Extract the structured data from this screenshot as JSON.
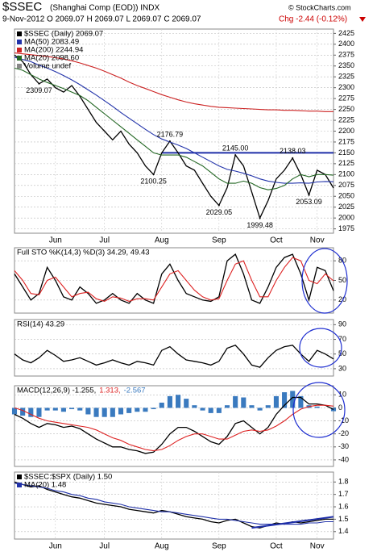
{
  "chart_data": [
    {
      "type": "line",
      "title": "$SSEC",
      "subtitle": "(Shanghai Comp (EOD)) INDX",
      "credit": "© StockCharts.com",
      "info": "9-Nov-2012  O 2069.07 H 2069.07 L 2069.07 C 2069.07",
      "change": "Chg -2.44 (-0.12%)",
      "xlim": [
        0,
        39
      ],
      "xticks": [
        {
          "value": 5,
          "label": "Jun"
        },
        {
          "value": 11,
          "label": "Jul"
        },
        {
          "value": 18,
          "label": "Aug"
        },
        {
          "value": 25,
          "label": "Sep"
        },
        {
          "value": 32,
          "label": "Oct"
        },
        {
          "value": 37,
          "label": "Nov"
        }
      ],
      "ylim": [
        1965,
        2435
      ],
      "yticks": [
        1975,
        2000,
        2025,
        2050,
        2075,
        2100,
        2125,
        2150,
        2175,
        2200,
        2225,
        2250,
        2275,
        2300,
        2325,
        2350,
        2375,
        2400,
        2425
      ],
      "grid": true,
      "series": [
        {
          "name": "$SSEC (Daily) 2069.07",
          "color": "#000000",
          "values": [
            2375,
            2360,
            2330,
            2309,
            2320,
            2300,
            2290,
            2305,
            2280,
            2250,
            2220,
            2200,
            2180,
            2200,
            2170,
            2150,
            2120,
            2100,
            2150,
            2177,
            2150,
            2120,
            2110,
            2080,
            2050,
            2029,
            2070,
            2145,
            2120,
            2060,
            2000,
            2040,
            2090,
            2110,
            2138,
            2100,
            2053,
            2110,
            2100,
            2069
          ]
        },
        {
          "name": "MA(50) 2083.49",
          "color": "#2233aa",
          "values": [
            2370,
            2365,
            2360,
            2352,
            2345,
            2337,
            2328,
            2318,
            2307,
            2295,
            2283,
            2270,
            2257,
            2243,
            2230,
            2217,
            2204,
            2192,
            2182,
            2175,
            2168,
            2160,
            2150,
            2140,
            2130,
            2120,
            2112,
            2108,
            2103,
            2097,
            2090,
            2085,
            2082,
            2080,
            2080,
            2081,
            2080,
            2083,
            2084,
            2083.49
          ]
        },
        {
          "name": "MA(200) 2244.94",
          "color": "#cc2222",
          "values": [
            2380,
            2378,
            2376,
            2374,
            2372,
            2369,
            2366,
            2362,
            2357,
            2351,
            2345,
            2338,
            2330,
            2322,
            2313,
            2305,
            2298,
            2291,
            2284,
            2278,
            2272,
            2267,
            2263,
            2260,
            2257,
            2255,
            2254,
            2253,
            2252,
            2251,
            2250,
            2249,
            2249,
            2248,
            2248,
            2247,
            2246,
            2246,
            2245,
            2244.94
          ]
        },
        {
          "name": "MA(20) 2098.60",
          "color": "#226622",
          "values": [
            2345,
            2340,
            2330,
            2320,
            2312,
            2305,
            2298,
            2290,
            2282,
            2270,
            2255,
            2240,
            2225,
            2210,
            2195,
            2180,
            2165,
            2150,
            2145,
            2145,
            2145,
            2140,
            2130,
            2120,
            2105,
            2090,
            2080,
            2080,
            2085,
            2080,
            2070,
            2065,
            2068,
            2075,
            2090,
            2100,
            2095,
            2100,
            2100,
            2098.6
          ]
        }
      ],
      "legend_extra": "Volume undef",
      "hline": {
        "value": 2150,
        "from": 18,
        "color": "#1f2fa8"
      },
      "annotations": [
        {
          "x": 3,
          "value": 2309.07,
          "label": "2309.07",
          "pos": "below"
        },
        {
          "x": 19,
          "value": 2176.79,
          "label": "2176.79",
          "pos": "above"
        },
        {
          "x": 17,
          "value": 2100.25,
          "label": "2100.25",
          "pos": "below"
        },
        {
          "x": 25,
          "value": 2029.05,
          "label": "2029.05",
          "pos": "below"
        },
        {
          "x": 27,
          "value": 2145,
          "label": "2145.00",
          "pos": "above"
        },
        {
          "x": 30,
          "value": 1999.48,
          "label": "1999.48",
          "pos": "below"
        },
        {
          "x": 34,
          "value": 2138.03,
          "label": "2138.03",
          "pos": "above"
        },
        {
          "x": 36,
          "value": 2053.09,
          "label": "2053.09",
          "pos": "below"
        }
      ]
    },
    {
      "type": "line",
      "label": "Full STO %K(14,3) %D(3) 34.29, 49.43",
      "xlim": [
        0,
        39
      ],
      "ylim": [
        0,
        100
      ],
      "yticks": [
        20,
        50,
        80
      ],
      "grid": true,
      "series": [
        {
          "color": "#000000",
          "values": [
            60,
            40,
            20,
            30,
            70,
            50,
            25,
            20,
            40,
            30,
            15,
            20,
            30,
            20,
            15,
            30,
            20,
            15,
            60,
            75,
            50,
            30,
            25,
            20,
            18,
            25,
            80,
            90,
            60,
            20,
            15,
            40,
            70,
            85,
            90,
            60,
            20,
            70,
            65,
            34.29
          ]
        },
        {
          "color": "#dd2222",
          "values": [
            65,
            50,
            30,
            28,
            50,
            55,
            40,
            25,
            30,
            32,
            22,
            18,
            25,
            23,
            18,
            22,
            22,
            20,
            40,
            60,
            65,
            50,
            35,
            25,
            20,
            22,
            50,
            75,
            80,
            50,
            25,
            25,
            50,
            70,
            85,
            80,
            50,
            45,
            60,
            49.43
          ]
        }
      ]
    },
    {
      "type": "line",
      "label": "RSI(14) 43.29",
      "xlim": [
        0,
        39
      ],
      "ylim": [
        20,
        97
      ],
      "yticks": [
        30,
        50,
        70,
        90
      ],
      "grid": true,
      "series": [
        {
          "color": "#000000",
          "values": [
            50,
            42,
            38,
            45,
            55,
            48,
            40,
            42,
            45,
            40,
            35,
            38,
            42,
            38,
            35,
            40,
            38,
            35,
            55,
            60,
            50,
            42,
            40,
            38,
            35,
            40,
            58,
            62,
            50,
            35,
            32,
            45,
            55,
            60,
            62,
            50,
            40,
            55,
            50,
            43.29
          ]
        }
      ]
    },
    {
      "type": "line",
      "xlim": [
        0,
        39
      ],
      "ylim": [
        -45,
        17
      ],
      "yticks": [
        -40,
        -30,
        -20,
        -10,
        0,
        10
      ],
      "grid": true,
      "series": [
        {
          "name": "MACD(12,26,9) -1.255,",
          "color": "#000000",
          "values": [
            -5,
            -8,
            -12,
            -15,
            -12,
            -13,
            -15,
            -14,
            -16,
            -20,
            -24,
            -27,
            -30,
            -30,
            -32,
            -33,
            -35,
            -34,
            -28,
            -20,
            -15,
            -15,
            -18,
            -22,
            -26,
            -28,
            -22,
            -12,
            -10,
            -15,
            -20,
            -15,
            -5,
            2,
            8,
            8,
            3,
            3,
            2,
            -1.255
          ]
        },
        {
          "name": "1.313,",
          "color": "#dd2222",
          "values": [
            0,
            -2,
            -5,
            -8,
            -10,
            -11,
            -12,
            -13,
            -14,
            -15,
            -17,
            -20,
            -23,
            -25,
            -28,
            -30,
            -32,
            -33,
            -32,
            -29,
            -25,
            -22,
            -20,
            -20,
            -22,
            -24,
            -24,
            -21,
            -18,
            -17,
            -18,
            -17,
            -14,
            -10,
            -5,
            -1,
            1,
            2,
            2,
            1.313
          ]
        },
        {
          "name": "-2.567",
          "color": "#3a7abf",
          "kind": "histogram",
          "values": [
            -5,
            -6,
            -7,
            -7,
            -2,
            -2,
            -3,
            -1,
            -2,
            -5,
            -7,
            -7,
            -7,
            -5,
            -4,
            -3,
            -3,
            -1,
            4,
            9,
            10,
            7,
            2,
            -2,
            -4,
            -4,
            2,
            9,
            8,
            2,
            -2,
            2,
            9,
            12,
            13,
            9,
            2,
            1,
            0,
            -2.567
          ]
        }
      ]
    },
    {
      "type": "line",
      "xlim": [
        0,
        39
      ],
      "xticks": [
        {
          "value": 5,
          "label": "Jun"
        },
        {
          "value": 11,
          "label": "Jul"
        },
        {
          "value": 18,
          "label": "Aug"
        },
        {
          "value": 25,
          "label": "Sep"
        },
        {
          "value": 32,
          "label": "Oct"
        },
        {
          "value": 37,
          "label": "Nov"
        }
      ],
      "ylim": [
        1.34,
        1.88
      ],
      "yticks": [
        1.4,
        1.5,
        1.6,
        1.7,
        1.8
      ],
      "grid": true,
      "series": [
        {
          "name": "$SSEC:$SPX (Daily) 1.50",
          "color": "#000000",
          "values": [
            1.8,
            1.78,
            1.76,
            1.77,
            1.74,
            1.72,
            1.7,
            1.68,
            1.67,
            1.65,
            1.63,
            1.62,
            1.61,
            1.6,
            1.58,
            1.57,
            1.56,
            1.55,
            1.57,
            1.56,
            1.54,
            1.52,
            1.51,
            1.5,
            1.48,
            1.47,
            1.49,
            1.5,
            1.47,
            1.44,
            1.43,
            1.45,
            1.47,
            1.46,
            1.48,
            1.47,
            1.48,
            1.49,
            1.5,
            1.5
          ]
        },
        {
          "name": "MA(20) 1.48",
          "color": "#2233aa",
          "values": [
            1.79,
            1.78,
            1.77,
            1.76,
            1.75,
            1.73,
            1.72,
            1.7,
            1.69,
            1.67,
            1.66,
            1.64,
            1.63,
            1.62,
            1.6,
            1.59,
            1.58,
            1.57,
            1.56,
            1.56,
            1.55,
            1.54,
            1.53,
            1.52,
            1.51,
            1.5,
            1.5,
            1.49,
            1.48,
            1.47,
            1.46,
            1.46,
            1.46,
            1.46,
            1.46,
            1.46,
            1.47,
            1.47,
            1.48,
            1.48
          ]
        }
      ],
      "trendline": {
        "color": "#1f2fa8",
        "x": [
          29,
          39
        ],
        "values": [
          1.43,
          1.52
        ]
      }
    }
  ]
}
